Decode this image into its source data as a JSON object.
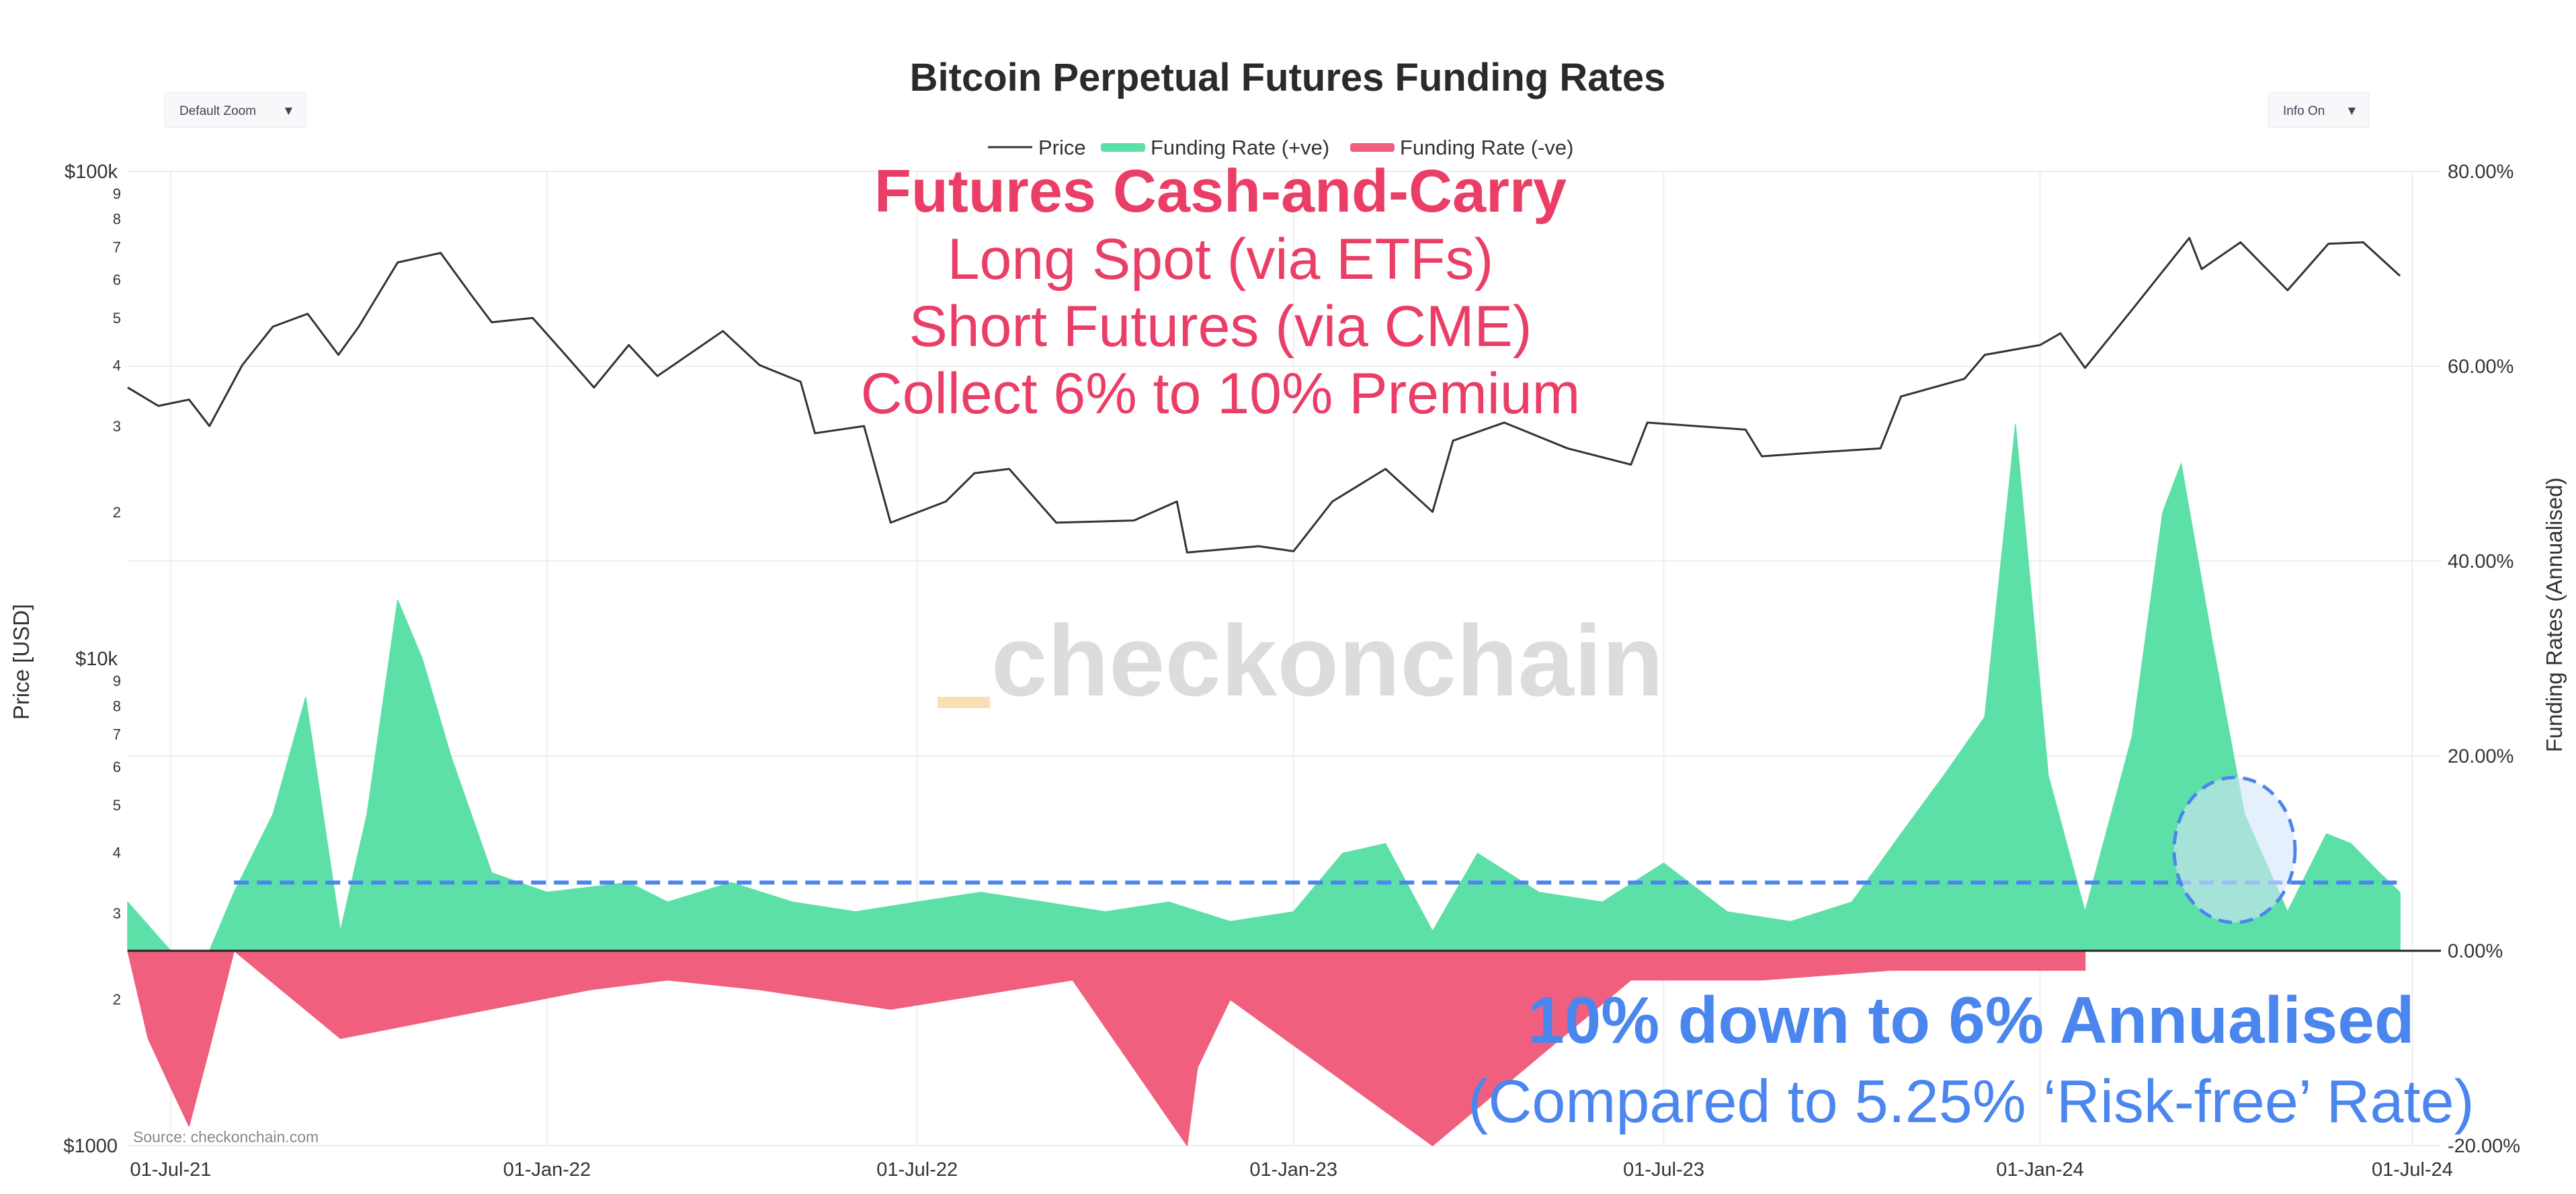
{
  "header": {
    "title": "Bitcoin Perpetual Futures Funding Rates"
  },
  "controls": {
    "zoom_label": "Default Zoom",
    "info_label": "Info On",
    "dropdown_glyph": "▼"
  },
  "legend": [
    {
      "label": "Price",
      "color": "#333333",
      "kind": "line"
    },
    {
      "label": "Funding Rate (+ve)",
      "color": "#5de0a8",
      "kind": "bar"
    },
    {
      "label": "Funding Rate (-ve)",
      "color": "#f0607e",
      "kind": "bar"
    }
  ],
  "annotations": {
    "strategy_title": "Futures Cash-and-Carry",
    "strategy_line1": "Long Spot (via ETFs)",
    "strategy_line2": "Short Futures (via CME)",
    "strategy_line3": "Collect 6% to 10% Premium",
    "strategy_color": "#ea3e66",
    "rate_headline": "10% down to 6% Annualised",
    "rate_compare": "(Compared to 5.25% ‘Risk-free’ Rate)",
    "rate_color": "#4a86ee",
    "dashed_line_level_pct": 7
  },
  "watermark": {
    "text": "checkonchain",
    "accent_color": "#f8dfb6"
  },
  "source": "Source: checkonchain.com",
  "chart_data": {
    "type": "line",
    "title": "Bitcoin Perpetual Futures Funding Rates",
    "x_range": [
      "2021-06-10",
      "2024-07-15"
    ],
    "x_ticks": [
      "01-Jul-21",
      "01-Jan-22",
      "01-Jul-22",
      "01-Jan-23",
      "01-Jul-23",
      "01-Jan-24",
      "01-Jul-24"
    ],
    "x_tick_dates": [
      "2021-07-01",
      "2022-01-01",
      "2022-07-01",
      "2023-01-01",
      "2023-07-01",
      "2024-01-01",
      "2024-07-01"
    ],
    "y_left": {
      "label": "Price [USD]",
      "scale": "log",
      "range": [
        1000,
        100000
      ],
      "major_ticks": [
        {
          "value": 1000,
          "label": "$1000"
        },
        {
          "value": 10000,
          "label": "$10k"
        },
        {
          "value": 100000,
          "label": "$100k"
        }
      ],
      "minor_ticks": [
        {
          "value": 2000,
          "label": "2"
        },
        {
          "value": 3000,
          "label": "3"
        },
        {
          "value": 4000,
          "label": "4"
        },
        {
          "value": 5000,
          "label": "5"
        },
        {
          "value": 6000,
          "label": "6"
        },
        {
          "value": 7000,
          "label": "7"
        },
        {
          "value": 8000,
          "label": "8"
        },
        {
          "value": 9000,
          "label": "9"
        },
        {
          "value": 20000,
          "label": "2"
        },
        {
          "value": 30000,
          "label": "3"
        },
        {
          "value": 40000,
          "label": "4"
        },
        {
          "value": 50000,
          "label": "5"
        },
        {
          "value": 60000,
          "label": "6"
        },
        {
          "value": 70000,
          "label": "7"
        },
        {
          "value": 80000,
          "label": "8"
        },
        {
          "value": 90000,
          "label": "9"
        }
      ]
    },
    "y_right": {
      "label": "Funding Rates (Annualised)",
      "range": [
        -20,
        80
      ],
      "ticks": [
        {
          "value": -20,
          "label": "-20.00%"
        },
        {
          "value": 0,
          "label": "0.00%"
        },
        {
          "value": 20,
          "label": "20.00%"
        },
        {
          "value": 40,
          "label": "40.00%"
        },
        {
          "value": 60,
          "label": "60.00%"
        },
        {
          "value": 80,
          "label": "80.00%"
        }
      ]
    },
    "grid": true,
    "legend_position": "top-center",
    "series": [
      {
        "name": "Price",
        "color": "#333333",
        "axis": "left",
        "points": [
          [
            "2021-06-10",
            36000
          ],
          [
            "2021-06-25",
            33000
          ],
          [
            "2021-07-10",
            34000
          ],
          [
            "2021-07-20",
            30000
          ],
          [
            "2021-08-05",
            40000
          ],
          [
            "2021-08-20",
            48000
          ],
          [
            "2021-09-06",
            51000
          ],
          [
            "2021-09-21",
            42000
          ],
          [
            "2021-10-01",
            48000
          ],
          [
            "2021-10-20",
            65000
          ],
          [
            "2021-11-10",
            68000
          ],
          [
            "2021-11-26",
            55000
          ],
          [
            "2021-12-05",
            49000
          ],
          [
            "2021-12-25",
            50000
          ],
          [
            "2022-01-10",
            42000
          ],
          [
            "2022-01-24",
            36000
          ],
          [
            "2022-02-10",
            44000
          ],
          [
            "2022-02-24",
            38000
          ],
          [
            "2022-03-28",
            47000
          ],
          [
            "2022-04-15",
            40000
          ],
          [
            "2022-05-05",
            37000
          ],
          [
            "2022-05-12",
            29000
          ],
          [
            "2022-06-05",
            30000
          ],
          [
            "2022-06-18",
            19000
          ],
          [
            "2022-07-15",
            21000
          ],
          [
            "2022-07-29",
            24000
          ],
          [
            "2022-08-15",
            24500
          ],
          [
            "2022-09-07",
            19000
          ],
          [
            "2022-10-15",
            19200
          ],
          [
            "2022-11-05",
            21000
          ],
          [
            "2022-11-10",
            16500
          ],
          [
            "2022-12-15",
            17000
          ],
          [
            "2023-01-01",
            16600
          ],
          [
            "2023-01-20",
            21000
          ],
          [
            "2023-02-15",
            24500
          ],
          [
            "2023-03-10",
            20000
          ],
          [
            "2023-03-20",
            28000
          ],
          [
            "2023-04-14",
            30500
          ],
          [
            "2023-05-15",
            27000
          ],
          [
            "2023-06-15",
            25000
          ],
          [
            "2023-06-23",
            30500
          ],
          [
            "2023-08-10",
            29500
          ],
          [
            "2023-08-18",
            26000
          ],
          [
            "2023-09-15",
            26500
          ],
          [
            "2023-10-15",
            27000
          ],
          [
            "2023-10-25",
            34500
          ],
          [
            "2023-11-25",
            37500
          ],
          [
            "2023-12-05",
            42000
          ],
          [
            "2024-01-01",
            44000
          ],
          [
            "2024-01-11",
            46500
          ],
          [
            "2024-01-23",
            39500
          ],
          [
            "2024-02-15",
            52000
          ],
          [
            "2024-03-14",
            73000
          ],
          [
            "2024-03-20",
            63000
          ],
          [
            "2024-04-08",
            71500
          ],
          [
            "2024-05-01",
            57000
          ],
          [
            "2024-05-21",
            71000
          ],
          [
            "2024-06-07",
            71500
          ],
          [
            "2024-06-25",
            61000
          ]
        ]
      },
      {
        "name": "Funding Rate (+ve)",
        "color": "#5de0a8",
        "axis": "right",
        "points": [
          [
            "2021-06-10",
            5
          ],
          [
            "2021-07-01",
            0
          ],
          [
            "2021-07-20",
            0
          ],
          [
            "2021-08-01",
            6
          ],
          [
            "2021-08-20",
            14
          ],
          [
            "2021-09-05",
            26
          ],
          [
            "2021-09-22",
            2
          ],
          [
            "2021-10-05",
            14
          ],
          [
            "2021-10-20",
            36
          ],
          [
            "2021-11-01",
            30
          ],
          [
            "2021-11-15",
            20
          ],
          [
            "2021-12-05",
            8
          ],
          [
            "2022-01-01",
            6
          ],
          [
            "2022-02-10",
            7
          ],
          [
            "2022-03-01",
            5
          ],
          [
            "2022-04-01",
            7
          ],
          [
            "2022-05-01",
            5
          ],
          [
            "2022-06-01",
            4
          ],
          [
            "2022-07-01",
            5
          ],
          [
            "2022-08-01",
            6
          ],
          [
            "2022-09-01",
            5
          ],
          [
            "2022-10-01",
            4
          ],
          [
            "2022-11-01",
            5
          ],
          [
            "2022-12-01",
            3
          ],
          [
            "2023-01-01",
            4
          ],
          [
            "2023-01-25",
            10
          ],
          [
            "2023-02-15",
            11
          ],
          [
            "2023-03-10",
            2
          ],
          [
            "2023-04-01",
            10
          ],
          [
            "2023-05-01",
            6
          ],
          [
            "2023-06-01",
            5
          ],
          [
            "2023-07-01",
            9
          ],
          [
            "2023-08-01",
            4
          ],
          [
            "2023-09-01",
            3
          ],
          [
            "2023-10-01",
            5
          ],
          [
            "2023-10-25",
            12
          ],
          [
            "2023-11-15",
            18
          ],
          [
            "2023-12-05",
            24
          ],
          [
            "2023-12-20",
            54
          ],
          [
            "2024-01-05",
            18
          ],
          [
            "2024-01-23",
            4
          ],
          [
            "2024-02-15",
            22
          ],
          [
            "2024-03-01",
            45
          ],
          [
            "2024-03-10",
            50
          ],
          [
            "2024-03-25",
            32
          ],
          [
            "2024-04-10",
            14
          ],
          [
            "2024-05-01",
            4
          ],
          [
            "2024-05-20",
            12
          ],
          [
            "2024-06-01",
            11
          ],
          [
            "2024-06-15",
            8
          ],
          [
            "2024-06-25",
            6
          ]
        ]
      },
      {
        "name": "Funding Rate (-ve)",
        "color": "#f0607e",
        "axis": "right",
        "points": [
          [
            "2021-06-10",
            0
          ],
          [
            "2021-06-20",
            -9
          ],
          [
            "2021-07-01",
            -14
          ],
          [
            "2021-07-10",
            -18
          ],
          [
            "2021-07-20",
            -10
          ],
          [
            "2021-08-01",
            0
          ],
          [
            "2021-09-22",
            -9
          ],
          [
            "2022-01-22",
            -4
          ],
          [
            "2022-03-01",
            -3
          ],
          [
            "2022-04-15",
            -4
          ],
          [
            "2022-06-18",
            -6
          ],
          [
            "2022-09-15",
            -3
          ],
          [
            "2022-11-10",
            -20
          ],
          [
            "2022-11-15",
            -12
          ],
          [
            "2022-12-01",
            -5
          ],
          [
            "2023-03-10",
            -20
          ],
          [
            "2023-06-15",
            -3
          ],
          [
            "2023-08-18",
            -3
          ],
          [
            "2023-10-20",
            -2
          ],
          [
            "2024-01-23",
            -2
          ]
        ]
      }
    ]
  }
}
